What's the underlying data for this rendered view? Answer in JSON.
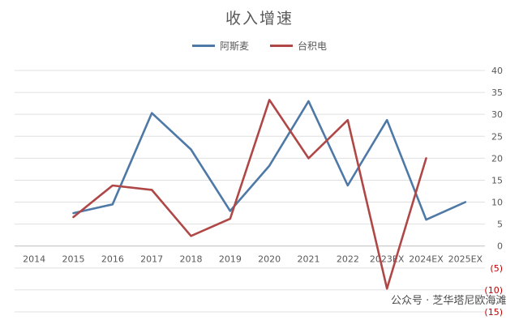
{
  "chart_data": {
    "type": "line",
    "title": "收入增速",
    "categories": [
      "2014",
      "2015",
      "2016",
      "2017",
      "2018",
      "2019",
      "2020",
      "2021",
      "2022",
      "2023EX",
      "2024EX",
      "2025EX"
    ],
    "series": [
      {
        "name": "阿斯麦",
        "color": "#4e79a7",
        "values": [
          null,
          7.5,
          9.5,
          30.3,
          22,
          8,
          18.3,
          33,
          13.8,
          28.7,
          6,
          10
        ]
      },
      {
        "name": "台积电",
        "color": "#b04747",
        "values": [
          null,
          6.6,
          13.8,
          12.8,
          2.3,
          6.2,
          33.3,
          20,
          28.7,
          -9.7,
          20,
          null
        ]
      }
    ],
    "ylim": [
      -15,
      40
    ],
    "yticks": [
      40,
      35,
      30,
      25,
      20,
      15,
      10,
      5,
      0,
      -5,
      -10,
      -15
    ],
    "ytick_labels": [
      "40",
      "35",
      "30",
      "25",
      "20",
      "15",
      "10",
      "5",
      "0",
      "(5)",
      "(10)",
      "(15)"
    ],
    "grid": true,
    "legend_position": "top"
  },
  "watermark": "公众号 · 芝华塔尼欧海滩"
}
